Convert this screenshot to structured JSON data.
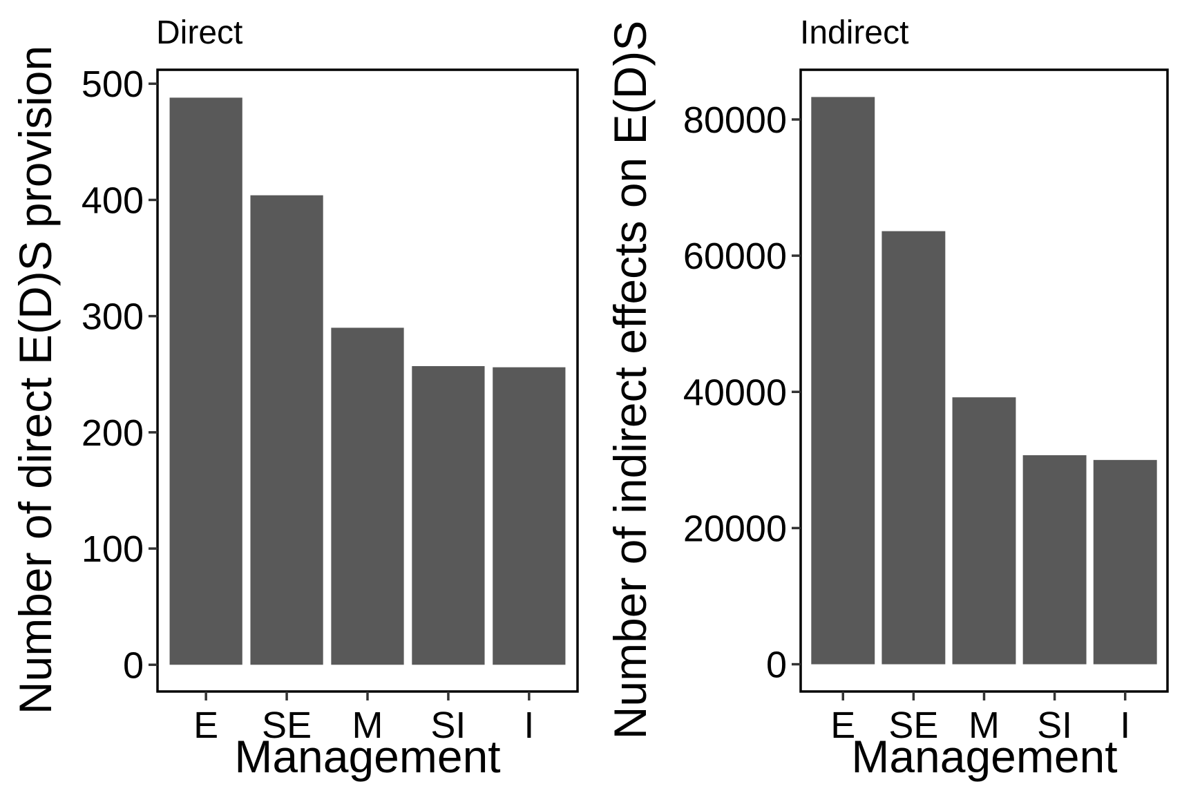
{
  "chart_data": [
    {
      "type": "bar",
      "title": "Direct",
      "xlabel": "Management",
      "ylabel": "Number of direct E(D)S provision",
      "categories": [
        "E",
        "SE",
        "M",
        "SI",
        "I"
      ],
      "values": [
        488,
        404,
        290,
        257,
        256
      ],
      "ylim": [
        -23,
        512
      ],
      "yticks": [
        0,
        100,
        200,
        300,
        400,
        500
      ],
      "ytick_labels": [
        "0",
        "100",
        "200",
        "300",
        "400",
        "500"
      ],
      "grid": false,
      "legend": "none",
      "bar_color": "#595959"
    },
    {
      "type": "bar",
      "title": "Indirect",
      "xlabel": "Management",
      "ylabel": "Number of indirect effects on E(D)S",
      "categories": [
        "E",
        "SE",
        "M",
        "SI",
        "I"
      ],
      "values": [
        83300,
        63600,
        39200,
        30700,
        30000
      ],
      "ylim": [
        -4000,
        87300
      ],
      "yticks": [
        0,
        20000,
        40000,
        60000,
        80000
      ],
      "ytick_labels": [
        "0",
        "20000",
        "40000",
        "60000",
        "80000"
      ],
      "grid": false,
      "legend": "none",
      "bar_color": "#595959"
    }
  ]
}
